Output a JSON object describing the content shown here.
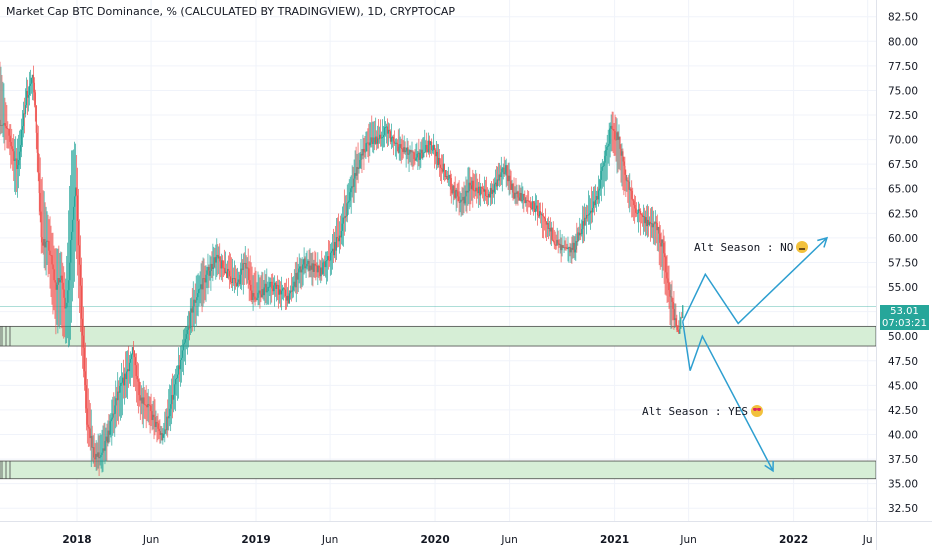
{
  "chart_title": "Market Cap BTC Dominance, % (CALCULATED BY TRADINGVIEW), 1D, CRYPTOCAP",
  "price_badge": {
    "price": "53.01",
    "countdown": "07:03:21"
  },
  "annotations": {
    "no": "Alt Season : NO",
    "yes": "Alt Season : YES"
  },
  "colors": {
    "up": "#26a69a",
    "down": "#ef5350",
    "arrow": "#2e9fd0",
    "zone_fill": "#d6eed6",
    "zone_border": "#4a4a4a"
  },
  "chart_data": {
    "type": "candlestick",
    "title": "Market Cap BTC Dominance, % (CALCULATED BY TRADINGVIEW), 1D, CRYPTOCAP",
    "yaxis_ticks": [
      "82.50",
      "80.00",
      "77.50",
      "75.00",
      "72.50",
      "70.00",
      "67.50",
      "65.00",
      "62.50",
      "60.00",
      "57.50",
      "55.00",
      "52.50",
      "50.00",
      "47.50",
      "45.00",
      "42.50",
      "40.00",
      "37.50",
      "35.00",
      "32.50"
    ],
    "ylim": [
      31.2,
      84.2
    ],
    "xaxis_ticks": [
      "2018",
      "Jun",
      "2019",
      "Jun",
      "2020",
      "Jun",
      "2021",
      "Jun",
      "2022",
      "Ju"
    ],
    "xaxis_tick_dates": [
      "2018-01-01",
      "2018-06-01",
      "2019-01-01",
      "2019-06-01",
      "2020-01-01",
      "2020-06-01",
      "2021-01-01",
      "2021-06-01",
      "2022-01-01",
      "2022-06-01"
    ],
    "xlim": [
      "2017-07-28",
      "2022-06-18"
    ],
    "series": [
      {
        "dates": [
          "2017-07-28",
          "2017-08-14",
          "2017-09-01",
          "2017-09-20",
          "2017-10-05",
          "2017-10-20",
          "2017-11-05",
          "2017-11-18",
          "2017-12-01",
          "2017-12-10",
          "2017-12-20",
          "2017-12-30",
          "2018-01-10",
          "2018-01-22",
          "2018-02-05",
          "2018-02-20",
          "2018-03-10",
          "2018-03-25",
          "2018-04-10",
          "2018-04-25",
          "2018-05-10",
          "2018-05-25",
          "2018-06-10",
          "2018-06-25",
          "2018-07-10",
          "2018-07-25",
          "2018-08-10",
          "2018-08-25",
          "2018-09-10",
          "2018-09-25",
          "2018-10-10",
          "2018-10-25",
          "2018-11-10",
          "2018-11-25",
          "2018-12-10",
          "2018-12-25",
          "2019-01-10",
          "2019-01-25",
          "2019-02-10",
          "2019-02-25",
          "2019-03-10",
          "2019-03-25",
          "2019-04-10",
          "2019-04-25",
          "2019-05-10",
          "2019-05-25",
          "2019-06-10",
          "2019-06-25",
          "2019-07-10",
          "2019-07-25",
          "2019-08-10",
          "2019-08-25",
          "2019-09-10",
          "2019-09-25",
          "2019-10-10",
          "2019-10-25",
          "2019-11-10",
          "2019-11-25",
          "2019-12-10",
          "2019-12-25",
          "2020-01-10",
          "2020-01-25",
          "2020-02-10",
          "2020-02-25",
          "2020-03-10",
          "2020-03-25",
          "2020-04-10",
          "2020-04-25",
          "2020-05-10",
          "2020-05-25",
          "2020-06-10",
          "2020-06-25",
          "2020-07-10",
          "2020-07-25",
          "2020-08-10",
          "2020-08-25",
          "2020-09-10",
          "2020-09-25",
          "2020-10-10",
          "2020-10-25",
          "2020-11-10",
          "2020-11-25",
          "2020-12-10",
          "2020-12-25",
          "2021-01-10",
          "2021-01-25",
          "2021-02-10",
          "2021-02-25",
          "2021-03-10",
          "2021-03-25",
          "2021-04-10",
          "2021-04-25",
          "2021-05-10",
          "2021-05-20"
        ],
        "close": [
          72.0,
          70.5,
          67.0,
          74.5,
          76.5,
          60.0,
          59.0,
          55.0,
          56.0,
          52.0,
          60.5,
          66.0,
          52.0,
          41.0,
          38.0,
          37.5,
          41.0,
          44.0,
          46.0,
          48.5,
          44.0,
          43.0,
          41.0,
          39.5,
          43.0,
          46.0,
          49.5,
          53.0,
          55.0,
          56.5,
          58.0,
          57.0,
          56.0,
          55.0,
          58.0,
          54.0,
          54.5,
          55.0,
          55.0,
          54.5,
          53.8,
          56.0,
          57.5,
          57.0,
          56.5,
          57.5,
          59.0,
          61.0,
          64.0,
          67.0,
          69.0,
          70.0,
          70.0,
          71.0,
          69.5,
          69.0,
          68.5,
          68.0,
          69.0,
          69.5,
          67.5,
          66.5,
          64.5,
          63.5,
          65.5,
          65.0,
          64.5,
          64.5,
          66.0,
          67.0,
          64.5,
          64.0,
          63.5,
          63.0,
          61.5,
          60.5,
          59.0,
          58.5,
          59.0,
          61.0,
          62.5,
          64.0,
          67.5,
          71.0,
          70.0,
          66.0,
          63.0,
          62.0,
          61.5,
          61.5,
          59.0,
          54.0,
          50.0,
          53.0
        ],
        "high": [
          79.3,
          72.5,
          70.0,
          76.5,
          78.0,
          67.0,
          63.0,
          60.0,
          59.0,
          57.0,
          69.0,
          71.0,
          58.0,
          46.5,
          40.5,
          40.5,
          43.0,
          46.5,
          48.5,
          50.0,
          46.5,
          45.5,
          43.5,
          41.5,
          45.5,
          48.5,
          52.0,
          55.5,
          58.0,
          58.5,
          60.5,
          59.0,
          58.5,
          57.5,
          60.0,
          57.5,
          56.5,
          57.0,
          57.0,
          56.0,
          56.0,
          58.0,
          59.5,
          59.0,
          58.5,
          59.5,
          61.5,
          64.0,
          67.0,
          69.5,
          71.0,
          72.8,
          72.0,
          73.0,
          71.5,
          71.0,
          70.0,
          70.0,
          71.0,
          71.0,
          69.5,
          68.0,
          66.5,
          65.5,
          67.5,
          67.0,
          66.5,
          66.0,
          68.0,
          69.0,
          66.5,
          66.0,
          65.0,
          65.0,
          63.5,
          62.0,
          61.0,
          60.0,
          61.0,
          63.0,
          65.0,
          66.0,
          69.5,
          73.7,
          72.0,
          68.0,
          65.0,
          63.5,
          63.5,
          63.0,
          61.0,
          56.5,
          52.5,
          54.0
        ],
        "low": [
          70.0,
          68.0,
          63.0,
          72.0,
          74.0,
          58.0,
          55.0,
          50.0,
          50.0,
          48.0,
          49.5,
          58.0,
          48.0,
          38.0,
          35.5,
          35.5,
          38.5,
          40.0,
          43.0,
          45.0,
          41.0,
          40.0,
          39.0,
          38.5,
          40.0,
          43.0,
          47.0,
          50.0,
          52.0,
          54.0,
          55.5,
          55.5,
          54.5,
          53.5,
          54.5,
          52.5,
          52.5,
          53.0,
          53.0,
          52.5,
          52.8,
          53.5,
          55.5,
          55.0,
          55.0,
          55.0,
          57.0,
          58.5,
          61.5,
          64.5,
          67.0,
          68.0,
          68.5,
          69.0,
          68.0,
          67.5,
          66.5,
          66.5,
          67.5,
          68.0,
          65.5,
          64.5,
          62.5,
          62.0,
          62.5,
          63.0,
          63.0,
          63.0,
          64.0,
          65.0,
          63.0,
          62.5,
          62.0,
          61.5,
          59.5,
          58.5,
          57.5,
          57.5,
          57.0,
          59.0,
          60.5,
          62.0,
          64.0,
          68.0,
          66.0,
          63.5,
          61.0,
          60.0,
          60.0,
          58.5,
          55.5,
          50.5,
          49.5,
          51.5
        ]
      }
    ],
    "zones": [
      {
        "bottom": 49.0,
        "top": 51.0
      },
      {
        "bottom": 35.5,
        "top": 37.3
      }
    ],
    "current_price_line": 53.01,
    "projection_paths": [
      {
        "label": "Alt Season : NO",
        "points": [
          [
            "2021-05-20",
            51.5
          ],
          [
            "2021-07-05",
            56.3
          ],
          [
            "2021-09-10",
            51.3
          ],
          [
            "2022-03-10",
            60.0
          ]
        ]
      },
      {
        "label": "Alt Season : YES",
        "points": [
          [
            "2021-05-20",
            51.5
          ],
          [
            "2021-06-04",
            46.5
          ],
          [
            "2021-06-29",
            50.0
          ],
          [
            "2021-11-20",
            36.3
          ]
        ]
      }
    ]
  }
}
